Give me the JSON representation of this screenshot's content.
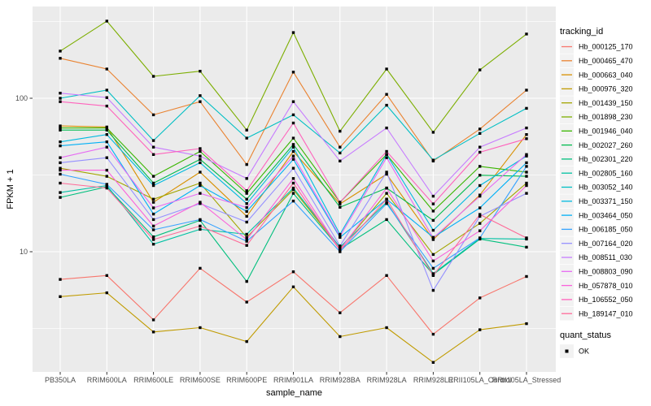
{
  "chart_data": {
    "type": "line",
    "title": "",
    "xlabel": "sample_name",
    "ylabel": "FPKM + 1",
    "y_scale": "log10",
    "ylim": [
      1.65,
      400
    ],
    "y_major_ticks": [
      100,
      10
    ],
    "y_minor_gridlines": [
      316,
      31.6,
      3.16
    ],
    "grid": "on",
    "marker_shape": "black-square",
    "categories": [
      "PB350LA",
      "RRIM600LA",
      "RRIM600LE",
      "RRIM600SE",
      "RRIM600PE",
      "RRIM901LA",
      "RRIM928BA",
      "RRIM928LA",
      "RRIM928LE",
      "RRII105LA_Control",
      "RRII105LA_Stressed"
    ],
    "legend": {
      "title": "tracking_id",
      "position": "right"
    },
    "legend2": {
      "title": "quant_status",
      "items": [
        {
          "label": "OK",
          "shape": "black-square"
        }
      ]
    },
    "series": [
      {
        "name": "Hb_000125_170",
        "color": "#F8766D",
        "values": [
          6.6,
          7.0,
          3.6,
          7.8,
          4.7,
          7.4,
          4.0,
          7.0,
          2.9,
          5.0,
          6.9
        ]
      },
      {
        "name": "Hb_000465_470",
        "color": "#EA8331",
        "values": [
          182,
          155,
          78,
          95,
          37,
          148,
          48,
          106,
          39,
          63,
          113
        ]
      },
      {
        "name": "Hb_000663_040",
        "color": "#D89000",
        "values": [
          66,
          65,
          21,
          33,
          17,
          45,
          20.5,
          32,
          12,
          23.4,
          58
        ]
      },
      {
        "name": "Hb_000976_320",
        "color": "#C09B00",
        "values": [
          5.1,
          5.4,
          3.0,
          3.2,
          2.6,
          5.9,
          2.8,
          3.2,
          1.9,
          3.1,
          3.4
        ]
      },
      {
        "name": "Hb_001439_150",
        "color": "#A3A500",
        "values": [
          35,
          31,
          22,
          28,
          12.4,
          25.4,
          10.5,
          24,
          9.6,
          15.3,
          28
        ]
      },
      {
        "name": "Hb_001898_230",
        "color": "#7CAE00",
        "values": [
          203,
          318,
          139,
          150,
          62,
          268,
          61,
          155,
          60,
          153,
          262
        ]
      },
      {
        "name": "Hb_001946_040",
        "color": "#39B600",
        "values": [
          64,
          64,
          31,
          45,
          24,
          55,
          21,
          43,
          18.4,
          36,
          33
        ]
      },
      {
        "name": "Hb_002027_260",
        "color": "#00BB4E",
        "values": [
          62,
          62,
          28,
          40,
          22,
          50,
          19.5,
          26,
          16,
          31.5,
          31
        ]
      },
      {
        "name": "Hb_002301_220",
        "color": "#00BF7D",
        "values": [
          22.6,
          26.5,
          12.5,
          16,
          6.4,
          24,
          10.4,
          16.2,
          7.1,
          12.1,
          10.7
        ]
      },
      {
        "name": "Hb_002805_160",
        "color": "#00C1A3",
        "values": [
          24.3,
          27,
          11.2,
          14,
          13,
          26,
          10.7,
          21,
          7.2,
          12.2,
          12.1
        ]
      },
      {
        "name": "Hb_003052_140",
        "color": "#00BFC4",
        "values": [
          100,
          113,
          53,
          104,
          55,
          78,
          44,
          90,
          39.5,
          59,
          86
        ]
      },
      {
        "name": "Hb_003371_150",
        "color": "#00BAE0",
        "values": [
          52,
          58,
          27,
          38,
          20.6,
          48,
          13,
          43,
          13.8,
          27,
          42
        ]
      },
      {
        "name": "Hb_003464_050",
        "color": "#00B0F6",
        "values": [
          49,
          52,
          17.6,
          27,
          18.3,
          40,
          12.4,
          22,
          12.4,
          19.3,
          38
        ]
      },
      {
        "name": "Hb_006185_050",
        "color": "#35A2FF",
        "values": [
          32,
          27.5,
          13.9,
          16.2,
          11.7,
          21.4,
          10.0,
          20.6,
          7.8,
          12.3,
          36
        ]
      },
      {
        "name": "Hb_007164_020",
        "color": "#9590FF",
        "values": [
          38,
          41,
          16.2,
          20.6,
          15.6,
          35,
          10.9,
          33,
          5.6,
          17,
          24
        ]
      },
      {
        "name": "Hb_008511_030",
        "color": "#C77CFF",
        "values": [
          108,
          101,
          48,
          42,
          30,
          95,
          39,
          64,
          23,
          48,
          64
        ]
      },
      {
        "name": "Hb_008803_090",
        "color": "#E76BF3",
        "values": [
          41,
          48,
          19.3,
          24,
          19.4,
          42,
          12.6,
          41,
          12.3,
          23,
          43
        ]
      },
      {
        "name": "Hb_057878_010",
        "color": "#FA62DB",
        "values": [
          34,
          34,
          14.7,
          21,
          12,
          30,
          10.3,
          26,
          8.7,
          13.7,
          27
        ]
      },
      {
        "name": "Hb_106552_050",
        "color": "#FF62BC",
        "values": [
          95,
          89,
          43,
          47,
          25,
          69,
          21,
          45,
          20.5,
          44.5,
          54.5
        ]
      },
      {
        "name": "Hb_189147_010",
        "color": "#FF6A98",
        "values": [
          28,
          26,
          12,
          14.7,
          11,
          28,
          10.2,
          22,
          7.0,
          17.5,
          12.3
        ]
      }
    ]
  },
  "colors": {
    "panel_bg": "#EBEBEB",
    "gridline": "#FFFFFF",
    "tick_text": "#4D4D4D",
    "axis_title": "#000000",
    "tick_mark": "#333333",
    "marker": "#000000",
    "legend_key_bg": "#F2F2F2",
    "legend_text": "#000000"
  }
}
